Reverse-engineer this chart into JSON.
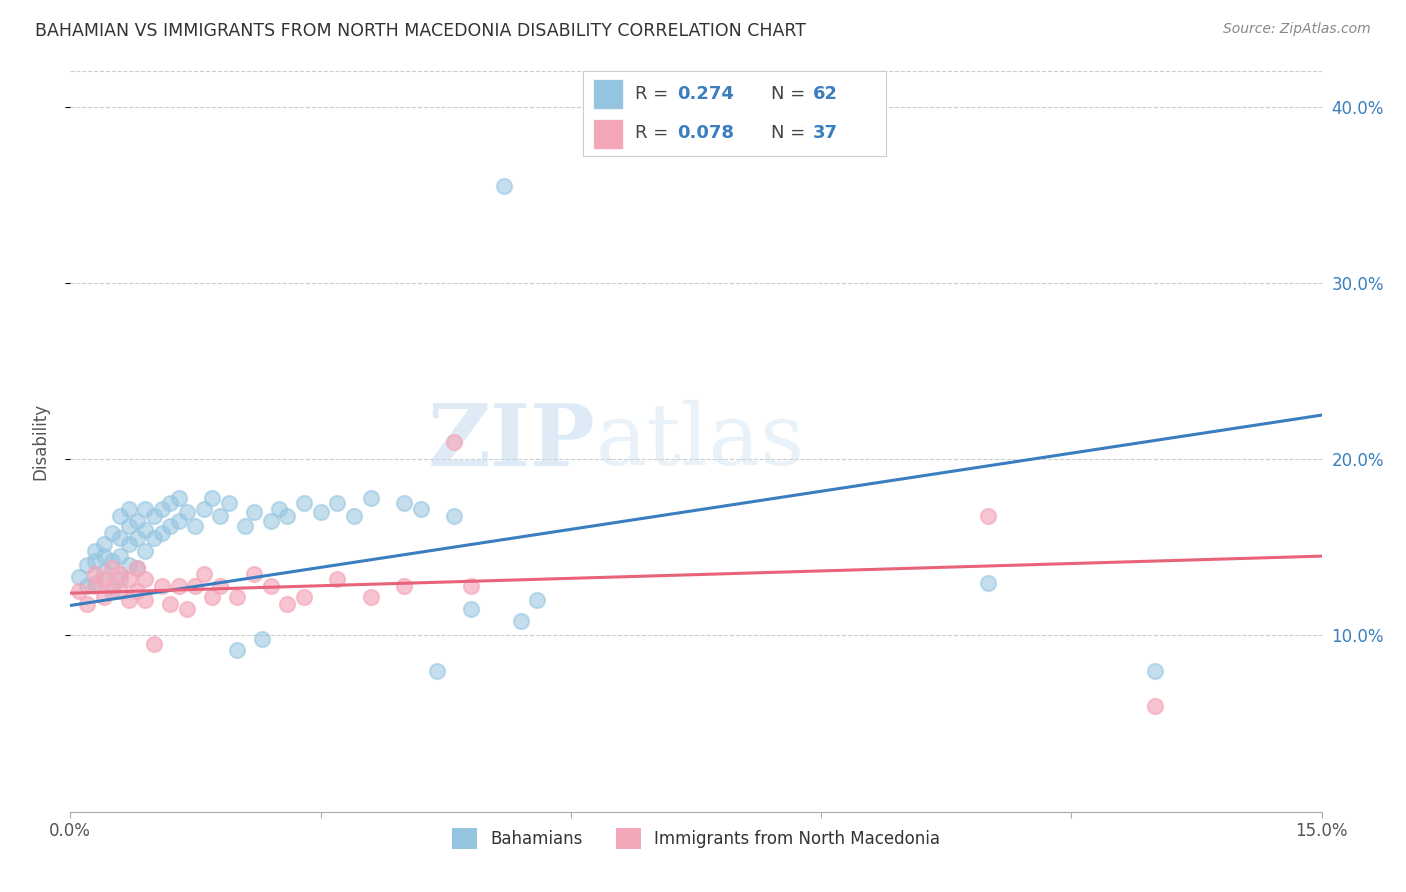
{
  "title": "BAHAMIAN VS IMMIGRANTS FROM NORTH MACEDONIA DISABILITY CORRELATION CHART",
  "source": "Source: ZipAtlas.com",
  "ylabel": "Disability",
  "xlim": [
    0.0,
    0.15
  ],
  "ylim": [
    0.0,
    0.42
  ],
  "xticks": [
    0.0,
    0.03,
    0.06,
    0.09,
    0.12,
    0.15
  ],
  "ytick_labels": [
    "10.0%",
    "20.0%",
    "30.0%",
    "40.0%"
  ],
  "yticks": [
    0.1,
    0.2,
    0.3,
    0.4
  ],
  "blue_color": "#94c4e0",
  "pink_color": "#f4a7b9",
  "blue_line_color": "#3a7ebf",
  "pink_line_color": "#e8637a",
  "watermark_zip": "ZIP",
  "watermark_atlas": "atlas",
  "blue_line_x0": 0.0,
  "blue_line_y0": 0.117,
  "blue_line_x1": 0.15,
  "blue_line_y1": 0.225,
  "pink_line_x0": 0.0,
  "pink_line_y0": 0.124,
  "pink_line_x1": 0.15,
  "pink_line_y1": 0.145,
  "blue_scatter_x": [
    0.001,
    0.002,
    0.002,
    0.003,
    0.003,
    0.003,
    0.004,
    0.004,
    0.004,
    0.005,
    0.005,
    0.005,
    0.006,
    0.006,
    0.006,
    0.006,
    0.007,
    0.007,
    0.007,
    0.007,
    0.008,
    0.008,
    0.008,
    0.009,
    0.009,
    0.009,
    0.01,
    0.01,
    0.011,
    0.011,
    0.012,
    0.012,
    0.013,
    0.013,
    0.014,
    0.015,
    0.016,
    0.017,
    0.018,
    0.019,
    0.02,
    0.021,
    0.022,
    0.023,
    0.024,
    0.025,
    0.026,
    0.028,
    0.03,
    0.032,
    0.034,
    0.036,
    0.04,
    0.042,
    0.044,
    0.046,
    0.048,
    0.052,
    0.054,
    0.056,
    0.11,
    0.13
  ],
  "blue_scatter_y": [
    0.133,
    0.128,
    0.14,
    0.13,
    0.142,
    0.148,
    0.136,
    0.145,
    0.152,
    0.125,
    0.142,
    0.158,
    0.132,
    0.145,
    0.155,
    0.168,
    0.14,
    0.152,
    0.162,
    0.172,
    0.138,
    0.155,
    0.165,
    0.148,
    0.16,
    0.172,
    0.155,
    0.168,
    0.158,
    0.172,
    0.162,
    0.175,
    0.165,
    0.178,
    0.17,
    0.162,
    0.172,
    0.178,
    0.168,
    0.175,
    0.092,
    0.162,
    0.17,
    0.098,
    0.165,
    0.172,
    0.168,
    0.175,
    0.17,
    0.175,
    0.168,
    0.178,
    0.175,
    0.172,
    0.08,
    0.168,
    0.115,
    0.355,
    0.108,
    0.12,
    0.13,
    0.08
  ],
  "pink_scatter_x": [
    0.001,
    0.002,
    0.003,
    0.003,
    0.004,
    0.004,
    0.005,
    0.005,
    0.006,
    0.006,
    0.007,
    0.007,
    0.008,
    0.008,
    0.009,
    0.009,
    0.01,
    0.011,
    0.012,
    0.013,
    0.014,
    0.015,
    0.016,
    0.017,
    0.018,
    0.02,
    0.022,
    0.024,
    0.026,
    0.028,
    0.032,
    0.036,
    0.04,
    0.046,
    0.048,
    0.11,
    0.13
  ],
  "pink_scatter_y": [
    0.125,
    0.118,
    0.128,
    0.135,
    0.122,
    0.132,
    0.128,
    0.138,
    0.125,
    0.135,
    0.12,
    0.132,
    0.125,
    0.138,
    0.12,
    0.132,
    0.095,
    0.128,
    0.118,
    0.128,
    0.115,
    0.128,
    0.135,
    0.122,
    0.128,
    0.122,
    0.135,
    0.128,
    0.118,
    0.122,
    0.132,
    0.122,
    0.128,
    0.21,
    0.128,
    0.168,
    0.06
  ]
}
